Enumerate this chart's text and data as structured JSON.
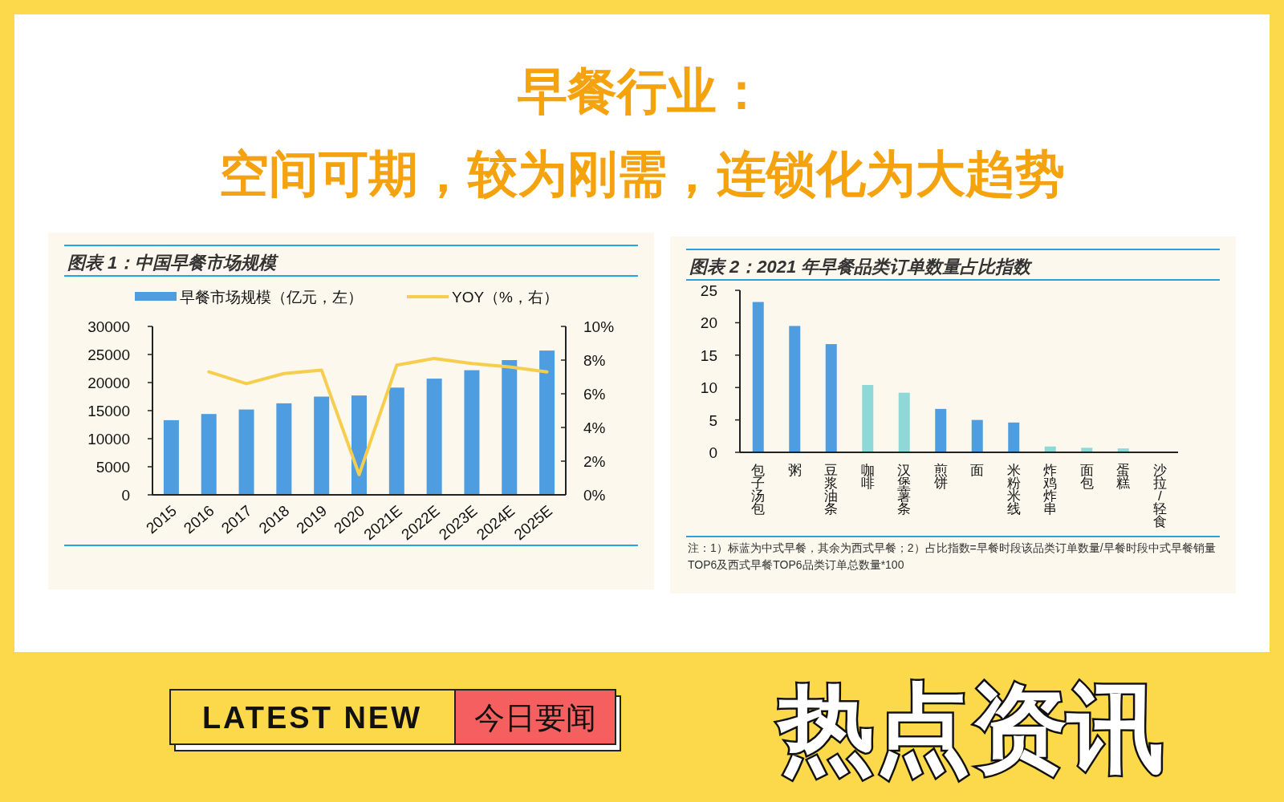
{
  "chart_data": [
    {
      "type": "other",
      "title": "早餐行业：",
      "subtitle": "空间可期，较为刚需，连锁化为大趋势",
      "annotations": [
        "LATEST NEW",
        "今日要闻",
        "热点资讯"
      ]
    },
    {
      "type": "bar",
      "title": "图表 1：中国早餐市场规模",
      "categories": [
        "2015",
        "2016",
        "2017",
        "2018",
        "2019",
        "2020",
        "2021E",
        "2022E",
        "2023E",
        "2024E",
        "2025E"
      ],
      "series": [
        {
          "name": "早餐市场规模（亿元，左）",
          "type": "bar",
          "color": "#4e9de0",
          "values": [
            13300,
            14400,
            15200,
            16300,
            17500,
            17700,
            19100,
            20700,
            22200,
            24000,
            25700
          ]
        },
        {
          "name": "YOY（%，右）",
          "type": "line",
          "axis": "y2",
          "color": "#f6cd4f",
          "values": [
            null,
            7.3,
            6.6,
            7.2,
            7.4,
            1.2,
            7.7,
            8.1,
            7.8,
            7.6,
            7.3
          ]
        }
      ],
      "ylim": [
        0,
        30000
      ],
      "yticks": [
        0,
        5000,
        10000,
        15000,
        20000,
        25000,
        30000
      ],
      "y2lim": [
        0,
        10
      ],
      "y2ticks": [
        {
          "value": 0,
          "label": "0%"
        },
        {
          "value": 2,
          "label": "2%"
        },
        {
          "value": 4,
          "label": "4%"
        },
        {
          "value": 6,
          "label": "6%"
        },
        {
          "value": 8,
          "label": "8%"
        },
        {
          "value": 10,
          "label": "10%"
        }
      ],
      "legend": "top"
    },
    {
      "type": "bar",
      "title": "图表 2：2021 年早餐品类订单数量占比指数",
      "categories": [
        "包子汤包",
        "粥",
        "豆浆油条",
        "咖啡",
        "汉堡薯条",
        "煎饼",
        "面",
        "米粉米线",
        "炸鸡炸串",
        "面包",
        "蛋糕",
        "沙拉/轻食"
      ],
      "values": [
        23.2,
        19.5,
        16.7,
        10.4,
        9.2,
        6.7,
        5.0,
        4.6,
        0.9,
        0.7,
        0.6,
        null
      ],
      "colors": [
        "#4e9de0",
        "#4e9de0",
        "#4e9de0",
        "#8fd8d8",
        "#8fd8d8",
        "#4e9de0",
        "#4e9de0",
        "#4e9de0",
        "#8fd8d8",
        "#8fd8d8",
        "#8fd8d8",
        null
      ],
      "ylim": [
        0,
        25
      ],
      "yticks": [
        0,
        5,
        10,
        15,
        20,
        25
      ],
      "annotations": [
        "注：1）标蓝为中式早餐，其余为西式早餐；2）占比指数=早餐时段该品类订单数量/早餐时段中式早餐销量TOP6及西式早餐TOP6品类订单总数量*100"
      ]
    }
  ]
}
